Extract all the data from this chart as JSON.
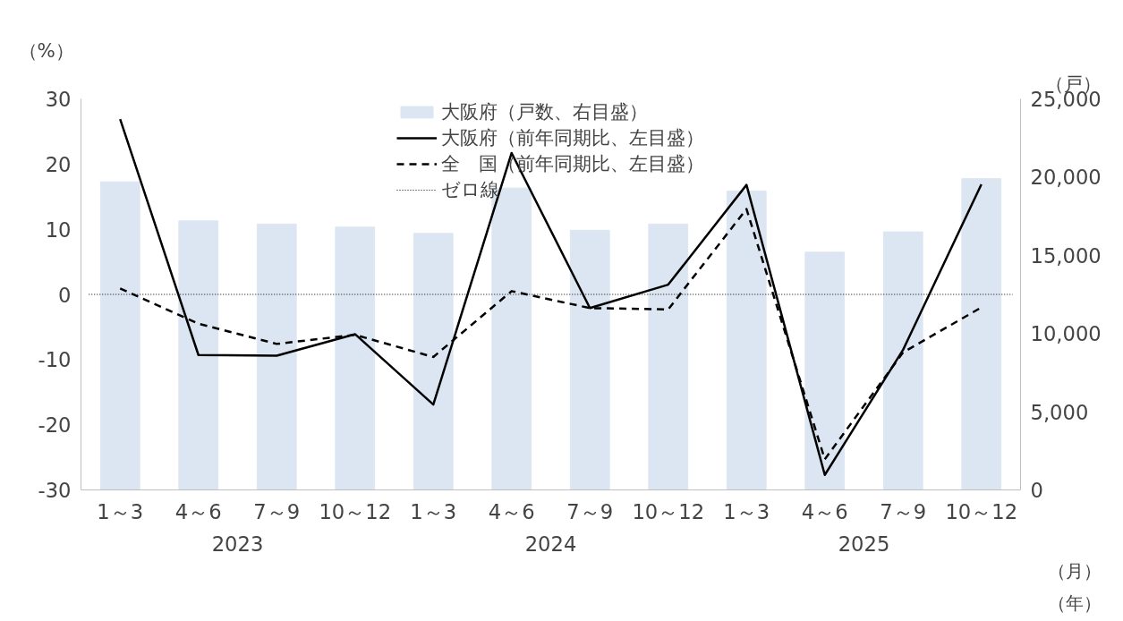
{
  "chart_data": {
    "type": "line",
    "categories": [
      "1～3",
      "4～6",
      "7～9",
      "10～12",
      "1～3",
      "4～6",
      "7～9",
      "10～12",
      "1～3",
      "4～6",
      "7～9",
      "10～12"
    ],
    "series": [
      {
        "name": "大阪府（戸数、右目盛）",
        "type": "bar",
        "axis": "y2",
        "color": "#dce6f2",
        "values": [
          19700,
          17200,
          17000,
          16800,
          16400,
          19300,
          16600,
          17000,
          19100,
          15200,
          16500,
          19900
        ]
      },
      {
        "name": "大阪府（前年同期比、左目盛）",
        "color": "#000000",
        "line_style": "solid",
        "values": [
          26.9,
          -9.3,
          -9.4,
          -6.1,
          -16.9,
          21.7,
          -2.1,
          1.5,
          16.8,
          -27.7,
          -8.5,
          16.9
        ]
      },
      {
        "name": "全　国（前年同期比、左目盛）",
        "color": "#000000",
        "line_style": "dashed",
        "values": [
          0.9,
          -4.5,
          -7.6,
          -6.2,
          -9.6,
          0.5,
          -2.1,
          -2.3,
          13.1,
          -25.3,
          -8.9,
          -2.0
        ]
      }
    ],
    "ref_lines": [
      {
        "axis": "y",
        "value": 0,
        "label": "ゼロ線",
        "color": "#000000",
        "line_style": "dotted"
      }
    ],
    "ylabel": "（%）",
    "y2label": "（戸）",
    "ylim": [
      -30,
      30
    ],
    "yticks": [
      -30,
      -20,
      -10,
      0,
      10,
      20,
      30
    ],
    "y2lim": [
      0,
      25000
    ],
    "y2ticks": [
      0,
      {
        "value": 5000,
        "label": "5,000"
      },
      {
        "value": 10000,
        "label": "10,000"
      },
      {
        "value": 15000,
        "label": "15,000"
      },
      {
        "value": 20000,
        "label": "20,000"
      },
      {
        "value": 25000,
        "label": "25,000"
      }
    ],
    "annotations": [
      "2023",
      "2024",
      "2025",
      "（月）",
      "（年）"
    ],
    "legend": "top",
    "grid": false
  }
}
